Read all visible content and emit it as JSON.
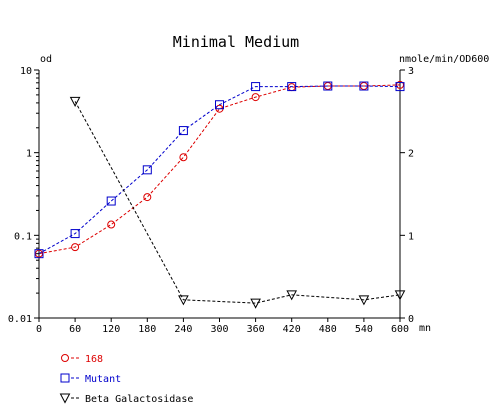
{
  "chart_data": {
    "type": "line",
    "title": "Minimal Medium",
    "xlabel": "mn",
    "ylabel": "od",
    "y2label": "nmole/min/OD600",
    "xlim": [
      0,
      600
    ],
    "ylim": [
      0.01,
      10
    ],
    "yscale": "log",
    "y2lim": [
      0,
      3
    ],
    "grid": false,
    "legend_position": "bottom-left",
    "x_ticks": [
      "0",
      "60",
      "120",
      "180",
      "240",
      "300",
      "360",
      "420",
      "480",
      "540",
      "600"
    ],
    "y_ticks": [
      "0.01",
      "0.1",
      "1",
      "10"
    ],
    "y2_ticks": [
      "0",
      "1",
      "2",
      "3"
    ],
    "series": [
      {
        "name": "168",
        "axis": "left",
        "marker": "circle",
        "color": "#dd0000",
        "x": [
          0,
          60,
          120,
          180,
          240,
          300,
          360,
          420,
          480,
          540,
          600
        ],
        "values": [
          0.06,
          0.072,
          0.135,
          0.29,
          0.88,
          3.4,
          4.7,
          6.2,
          6.4,
          6.4,
          6.6
        ]
      },
      {
        "name": "Mutant",
        "axis": "left",
        "marker": "square",
        "color": "#0000cc",
        "x": [
          0,
          60,
          120,
          180,
          240,
          300,
          360,
          420,
          480,
          540,
          600
        ],
        "values": [
          0.06,
          0.105,
          0.26,
          0.62,
          1.85,
          3.8,
          6.3,
          6.3,
          6.4,
          6.4,
          6.3
        ]
      },
      {
        "name": "Beta Galactosidase",
        "axis": "right",
        "marker": "triangle-down",
        "color": "#000000",
        "x": [
          60,
          240,
          360,
          420,
          540,
          600
        ],
        "values": [
          2.62,
          0.22,
          0.18,
          0.28,
          0.22,
          0.28
        ]
      }
    ]
  }
}
